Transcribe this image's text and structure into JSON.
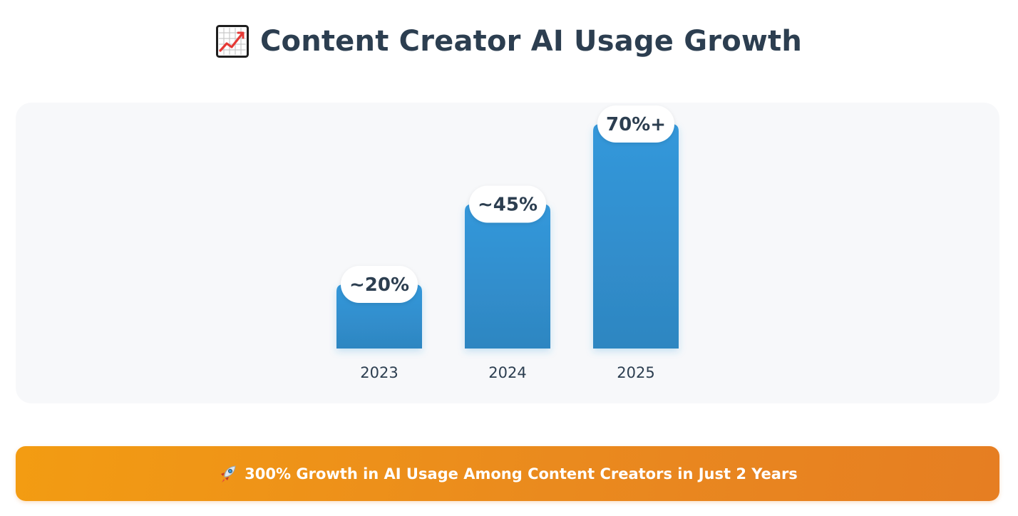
{
  "header": {
    "icon": "chart-increasing-icon",
    "title": "Content Creator AI Usage Growth"
  },
  "chart_data": {
    "type": "bar",
    "title": "Content Creator AI Usage Growth",
    "categories": [
      "2023",
      "2024",
      "2025"
    ],
    "values": [
      20,
      45,
      70
    ],
    "value_labels": [
      "~20%",
      "~45%",
      "70%+"
    ],
    "xlabel": "",
    "ylabel": "",
    "ylim": [
      0,
      70
    ],
    "grid": false,
    "legend": "none",
    "bar_color": "#3498db",
    "bar_color_dark": "#2e86c1"
  },
  "banner": {
    "icon": "rocket-icon",
    "text": "300% Growth in AI Usage Among Content Creators in Just 2 Years",
    "color_start": "#f39c12",
    "color_end": "#e67e22"
  },
  "colors": {
    "text": "#2c3e50",
    "card_background": "#f7f8fa"
  }
}
